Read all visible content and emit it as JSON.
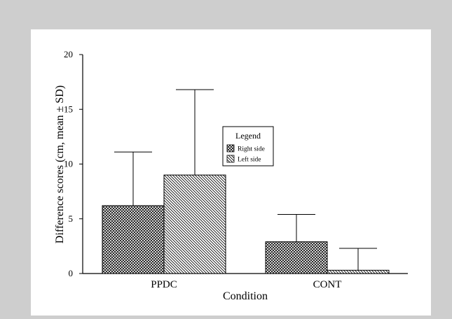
{
  "chart_data": {
    "type": "bar",
    "categories": [
      "PPDC",
      "CONT"
    ],
    "series": [
      {
        "name": "Right side",
        "pattern": "crosshatch",
        "values": [
          6.2,
          2.9
        ],
        "sd": [
          4.9,
          2.5
        ]
      },
      {
        "name": "Left side",
        "pattern": "diagonal",
        "values": [
          9.0,
          0.3
        ],
        "sd": [
          7.8,
          2.0
        ]
      }
    ],
    "xlabel": "Condition",
    "ylabel": "Difference scores (cm, mean ± SD)",
    "ylim": [
      0,
      20
    ],
    "yticks": [
      0,
      5,
      10,
      15,
      20
    ],
    "error_bars": "upper",
    "legend": {
      "title": "Legend",
      "position": "center"
    },
    "grid": false
  },
  "colors": {
    "page_background": "#cecece",
    "plot_background": "#ffffff",
    "ink": "#000000"
  }
}
